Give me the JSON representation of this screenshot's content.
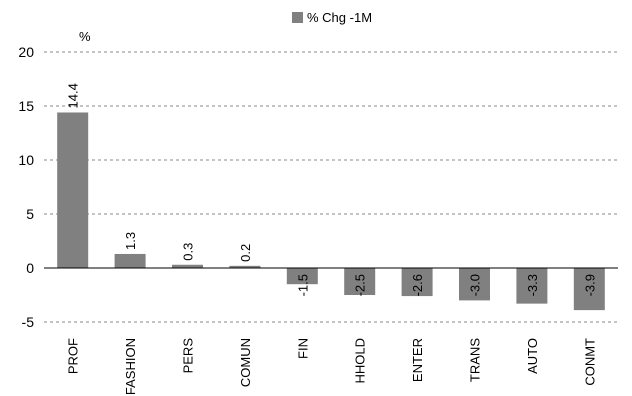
{
  "chart_data": {
    "type": "bar",
    "unit_label": "%",
    "categories": [
      "PROF",
      "FASHION",
      "PERS",
      "COMUN",
      "FIN",
      "HHOLD",
      "ENTER",
      "TRANS",
      "AUTO",
      "CONMT"
    ],
    "series": [
      {
        "name": "% Chg -1M",
        "color": "#808080",
        "values": [
          14.4,
          1.3,
          0.3,
          0.2,
          -1.5,
          -2.5,
          -2.6,
          -3.0,
          -3.3,
          -3.9
        ],
        "labels": [
          "14.4",
          "1.3",
          "0.3",
          "0.2",
          "-1.5",
          "-2.5",
          "-2.6",
          "-3.0",
          "-3.3",
          "-3.9"
        ]
      }
    ],
    "ylim": [
      -5,
      20
    ],
    "yticks": [
      -5,
      0,
      5,
      10,
      15,
      20
    ],
    "ytick_labels": [
      "-5",
      "0",
      "5",
      "10",
      "15",
      "20"
    ],
    "grid": "horizontal-dashed",
    "legend": "top-center"
  }
}
